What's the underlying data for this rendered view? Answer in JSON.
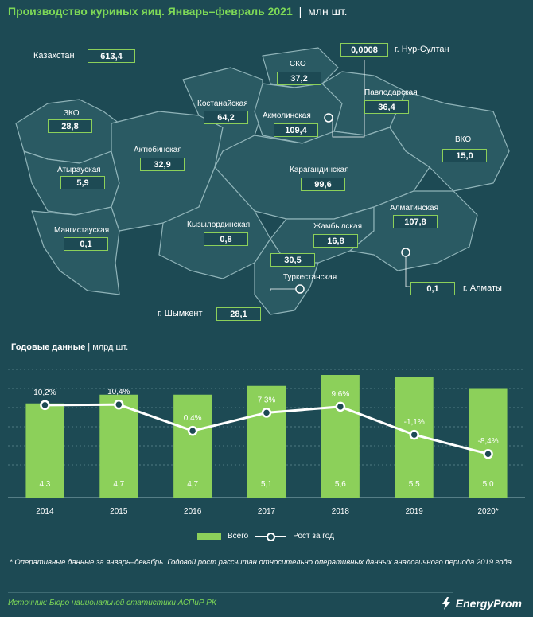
{
  "title": {
    "main": "Производство куриных яиц. Январь–февраль 2021",
    "unit": "млн шт."
  },
  "map": {
    "total_label": "Казахстан",
    "total_value": "613,4",
    "regions": [
      {
        "id": "zko",
        "name": "ЗКО",
        "value": "28,8"
      },
      {
        "id": "atyrau",
        "name": "Атырауская",
        "value": "5,9"
      },
      {
        "id": "mangistau",
        "name": "Мангистауская",
        "value": "0,1"
      },
      {
        "id": "aktobe",
        "name": "Актюбинская",
        "value": "32,9"
      },
      {
        "id": "kostanay",
        "name": "Костанайская",
        "value": "64,2"
      },
      {
        "id": "sko",
        "name": "СКО",
        "value": "37,2"
      },
      {
        "id": "akmola",
        "name": "Акмолинская",
        "value": "109,4"
      },
      {
        "id": "pavlodar",
        "name": "Павлодарская",
        "value": "36,4"
      },
      {
        "id": "vko",
        "name": "ВКО",
        "value": "15,0"
      },
      {
        "id": "karaganda",
        "name": "Карагандинская",
        "value": "99,6"
      },
      {
        "id": "kyzylorda",
        "name": "Кызылординская",
        "value": "0,8"
      },
      {
        "id": "zhambyl",
        "name": "Жамбылская",
        "value": "16,8"
      },
      {
        "id": "almaty_reg",
        "name": "Алматинская",
        "value": "107,8"
      },
      {
        "id": "turkestan",
        "name": "Туркестанская",
        "value": "30,5"
      }
    ],
    "cities": [
      {
        "id": "nursultan",
        "name": "г. Нур-Султан",
        "value": "0,0008"
      },
      {
        "id": "almaty",
        "name": "г. Алматы",
        "value": "0,1"
      },
      {
        "id": "shymkent",
        "name": "г. Шымкент",
        "value": "28,1"
      }
    ]
  },
  "annual": {
    "title": "Годовые данные",
    "unit": "млрд шт."
  },
  "chart_data": {
    "type": "bar",
    "categories": [
      "2014",
      "2015",
      "2016",
      "2017",
      "2018",
      "2019",
      "2020*"
    ],
    "series": [
      {
        "name": "Всего",
        "kind": "bar",
        "values": [
          4.3,
          4.7,
          4.7,
          5.1,
          5.6,
          5.5,
          5.0
        ],
        "labels": [
          "4,3",
          "4,7",
          "4,7",
          "5,1",
          "5,6",
          "5,5",
          "5,0"
        ]
      },
      {
        "name": "Рост за год",
        "kind": "line",
        "values": [
          10.2,
          10.4,
          0.4,
          7.3,
          9.6,
          -1.1,
          -8.4
        ],
        "labels": [
          "10,2%",
          "10,4%",
          "0,4%",
          "7,3%",
          "9,6%",
          "-1,1%",
          "-8,4%"
        ]
      }
    ],
    "bar_ylim": [
      0,
      6
    ],
    "line_ylim": [
      -25,
      25
    ],
    "grid": true,
    "legend": "bottom-center",
    "colors": {
      "bar": "#8cd05a",
      "line": "#ffffff"
    }
  },
  "legend": {
    "bar_label": "Всего",
    "line_label": "Рост за год"
  },
  "footnote": "* Оперативные данные за январь–декабрь. Годовой рост рассчитан относительно оперативных данных аналогичного периода 2019 года.",
  "source": "Источник: Бюро национальной статистики АСПиР РК",
  "logo": "EnergyProm",
  "colors": {
    "background": "#1d4a54",
    "accent": "#8cd05a",
    "title": "#7ed957"
  }
}
